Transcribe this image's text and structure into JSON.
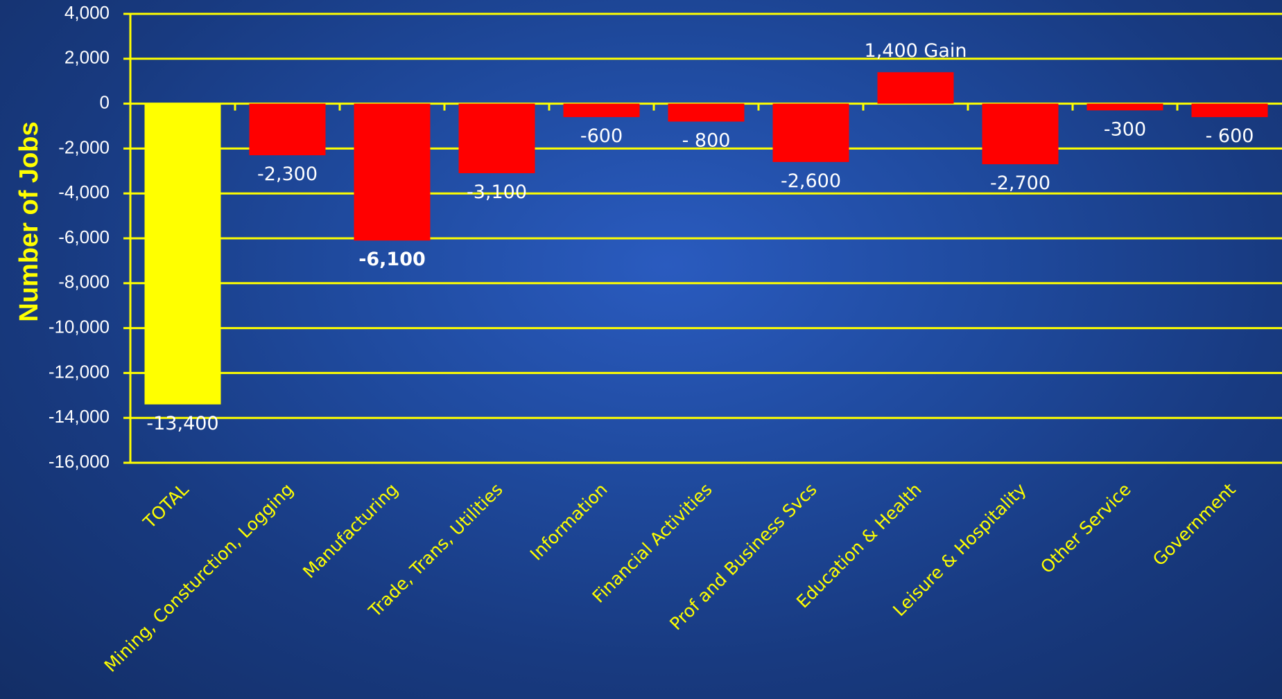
{
  "chart_data": {
    "type": "bar",
    "ylabel": "Number of Jobs",
    "ylim": [
      -16000,
      4000
    ],
    "yticks": [
      4000,
      2000,
      0,
      -2000,
      -4000,
      -6000,
      -8000,
      -10000,
      -12000,
      -14000,
      -16000
    ],
    "ytick_labels": [
      "4,000",
      "2,000",
      "0",
      "-2,000",
      "-4,000",
      "-6,000",
      "-8,000",
      "-10,000",
      "-12,000",
      "-14,000",
      "-16,000"
    ],
    "grid": true,
    "categories": [
      "TOTAL",
      "Mining, Consturction, Logging",
      "Manufacturing",
      "Trade, Trans, Utilities",
      "Information",
      "Financial Activities",
      "Prof and Business Svcs",
      "Education & Health",
      "Leisure & Hospitality",
      "Other Service",
      "Government"
    ],
    "values": [
      -13400,
      -2300,
      -6100,
      -3100,
      -600,
      -800,
      -2600,
      1400,
      -2700,
      -300,
      -600
    ],
    "data_labels": [
      "-13,400",
      "-2,300",
      "-6,100",
      "-3,100",
      "-600",
      "- 800",
      "-2,600",
      "1,400 Gain",
      "-2,700",
      "-300",
      "- 600"
    ],
    "bar_colors": [
      "#ffff00",
      "#ff0000",
      "#ff0000",
      "#ff0000",
      "#ff0000",
      "#ff0000",
      "#ff0000",
      "#ff0000",
      "#ff0000",
      "#ff0000",
      "#ff0000"
    ],
    "axis_color": "#ffff00",
    "gridline_color": "#ffff00"
  }
}
